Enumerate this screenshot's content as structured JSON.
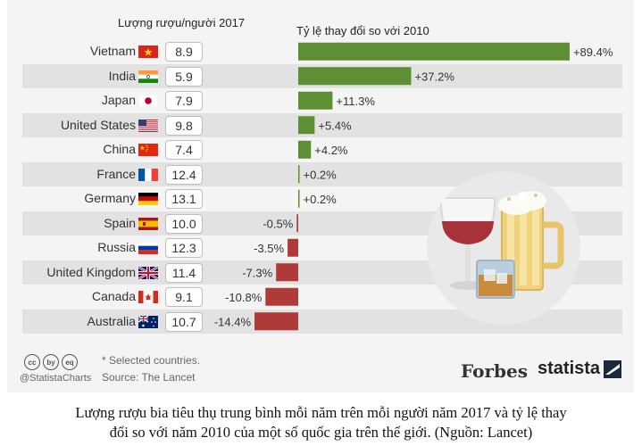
{
  "chart_data": {
    "type": "bar",
    "left_header": "Lượng rượu/người 2017",
    "right_header": "Tỷ lệ thay đổi so với 2010",
    "categories": [
      "Vietnam",
      "India",
      "Japan",
      "United States",
      "China",
      "France",
      "Germany",
      "Spain",
      "Russia",
      "United Kingdom",
      "Canada",
      "Australia"
    ],
    "consumption_2017": [
      "8.9",
      "5.9",
      "7.9",
      "9.8",
      "7.4",
      "12.4",
      "13.1",
      "10.0",
      "12.3",
      "11.4",
      "9.1",
      "10.7"
    ],
    "change_vs_2010": [
      89.4,
      37.2,
      11.3,
      5.4,
      4.2,
      0.2,
      0.2,
      -0.5,
      -3.5,
      -7.3,
      -10.8,
      -14.4
    ],
    "change_labels": [
      "+89.4%",
      "+37.2%",
      "+11.3%",
      "+5.4%",
      "+4.2%",
      "+0.2%",
      "+0.2%",
      "-0.5%",
      "-3.5%",
      "-7.3%",
      "-10.8%",
      "-14.4%"
    ],
    "positive_color": "#5f8f35",
    "negative_color": "#b03a3a"
  },
  "footer": {
    "license_icons": [
      "cc",
      "by",
      "eq"
    ],
    "handle": "@StatistaCharts",
    "note": "* Selected countries.",
    "source": "Source: The Lancet",
    "forbes": "Forbes",
    "statista": "statista"
  },
  "caption": {
    "line1": "Lượng rượu bia tiêu thụ trung bình mỗi năm trên mỗi người năm 2017 và tỷ lệ thay",
    "line2": "đổi so với năm 2010 của một số quốc gia trên thế giới. (Nguồn: Lancet)"
  }
}
